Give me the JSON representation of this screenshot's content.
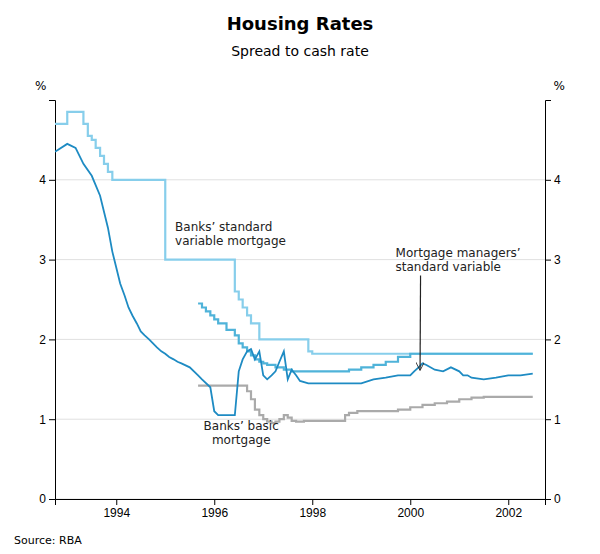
{
  "chart_data": {
    "type": "line",
    "title": "Housing Rates",
    "subtitle": "Spread to cash rate",
    "source": "Source: RBA",
    "ylabel": "%",
    "y2label": "%",
    "xlim": [
      1992.75,
      2002.75
    ],
    "xticks": [
      1994,
      1996,
      1998,
      2000,
      2002
    ],
    "ylim": [
      0,
      5
    ],
    "yticks": [
      0,
      1,
      2,
      3,
      4
    ],
    "y2lim": [
      0,
      5
    ],
    "y2ticks": [
      0,
      1,
      2,
      3,
      4
    ],
    "grid": "y",
    "annotations": [
      {
        "text": "Banks’ standard\nvariable mortgage"
      },
      {
        "text": "Banks’ basic\nmortgage"
      },
      {
        "text": "Mortgage managers’\nstandard variable",
        "x": 2000.2,
        "y": 1.62
      }
    ],
    "series": [
      {
        "color": "#87ceeb",
        "line_style": "steps",
        "x": [
          1992.75,
          1993.0,
          1993.25,
          1993.33,
          1993.42,
          1993.5,
          1993.58,
          1993.67,
          1993.75,
          1993.83,
          1993.92,
          1994.0,
          1994.5,
          1994.75,
          1994.92,
          1995.0,
          1995.5,
          1995.75,
          1995.92,
          1996.0,
          1996.33,
          1996.42,
          1996.5,
          1996.58,
          1996.67,
          1996.75,
          1996.92,
          1997.0,
          1997.25,
          1997.5,
          1997.75,
          1997.92,
          1998.0,
          1998.5,
          1999.0,
          1999.5,
          2000.0,
          2000.5,
          2001.0,
          2001.5,
          2002.0,
          2002.5
        ],
        "values": [
          4.7,
          4.85,
          4.85,
          4.7,
          4.55,
          4.5,
          4.4,
          4.3,
          4.2,
          4.1,
          4.0,
          4.0,
          4.0,
          4.0,
          4.0,
          3.0,
          3.0,
          3.0,
          3.0,
          3.0,
          3.0,
          2.6,
          2.5,
          2.4,
          2.3,
          2.2,
          2.0,
          2.0,
          2.0,
          2.0,
          2.0,
          1.85,
          1.82,
          1.82,
          1.82,
          1.82,
          1.82,
          1.82,
          1.82,
          1.82,
          1.82,
          1.82
        ]
      },
      {
        "color": "#4fb3d9",
        "line_style": "steps",
        "x": [
          1995.67,
          1995.75,
          1995.83,
          1995.92,
          1996.0,
          1996.08,
          1996.25,
          1996.42,
          1996.5,
          1996.58,
          1996.67,
          1996.75,
          1996.83,
          1996.92,
          1997.0,
          1997.08,
          1997.25,
          1997.42,
          1997.5,
          1997.58,
          1997.67,
          1997.75,
          1997.92,
          1998.0,
          1998.25,
          1998.5,
          1998.75,
          1999.0,
          1999.25,
          1999.5,
          1999.75,
          2000.0,
          2000.25,
          2000.5,
          2000.75,
          2001.0,
          2001.25,
          2001.5,
          2001.75,
          2002.0,
          2002.5
        ],
        "values": [
          2.45,
          2.4,
          2.35,
          2.3,
          2.25,
          2.2,
          2.12,
          2.05,
          1.95,
          1.9,
          1.85,
          1.8,
          1.75,
          1.72,
          1.7,
          1.68,
          1.65,
          1.62,
          1.62,
          1.6,
          1.6,
          1.6,
          1.6,
          1.6,
          1.6,
          1.6,
          1.62,
          1.65,
          1.68,
          1.72,
          1.78,
          1.82,
          1.82,
          1.82,
          1.82,
          1.82,
          1.82,
          1.82,
          1.82,
          1.82,
          1.82
        ]
      },
      {
        "color": "#aaaaaa",
        "line_style": "steps",
        "x": [
          1995.67,
          1995.75,
          1995.83,
          1995.92,
          1996.0,
          1996.08,
          1996.25,
          1996.42,
          1996.5,
          1996.58,
          1996.67,
          1996.75,
          1996.83,
          1996.92,
          1997.0,
          1997.08,
          1997.17,
          1997.25,
          1997.33,
          1997.42,
          1997.5,
          1997.58,
          1997.67,
          1997.75,
          1997.83,
          1997.92,
          1998.0,
          1998.08,
          1998.25,
          1998.5,
          1998.67,
          1998.75,
          1998.92,
          1999.0,
          1999.25,
          1999.5,
          1999.75,
          2000.0,
          2000.25,
          2000.5,
          2000.75,
          2001.0,
          2001.25,
          2001.5,
          2001.75,
          2002.0,
          2002.5
        ],
        "values": [
          1.42,
          1.42,
          1.42,
          1.42,
          1.42,
          1.42,
          1.42,
          1.42,
          1.42,
          1.42,
          1.35,
          1.25,
          1.12,
          1.05,
          1.0,
          0.97,
          0.95,
          0.97,
          1.0,
          1.05,
          1.02,
          0.98,
          0.97,
          0.97,
          0.98,
          0.98,
          0.98,
          0.98,
          0.98,
          0.98,
          1.05,
          1.08,
          1.1,
          1.1,
          1.1,
          1.1,
          1.12,
          1.15,
          1.18,
          1.2,
          1.22,
          1.25,
          1.27,
          1.28,
          1.28,
          1.28,
          1.28
        ]
      },
      {
        "color": "#1e8bc3",
        "line_style": "solid",
        "x": [
          1992.75,
          1993.0,
          1993.17,
          1993.25,
          1993.33,
          1993.5,
          1993.67,
          1993.83,
          1993.92,
          1994.0,
          1994.08,
          1994.17,
          1994.25,
          1994.33,
          1994.42,
          1994.5,
          1994.58,
          1994.67,
          1994.75,
          1994.83,
          1994.92,
          1995.0,
          1995.08,
          1995.17,
          1995.25,
          1995.33,
          1995.5,
          1995.67,
          1995.75,
          1995.92,
          1996.0,
          1996.08,
          1996.17,
          1996.25,
          1996.33,
          1996.42,
          1996.5,
          1996.58,
          1996.67,
          1996.75,
          1996.83,
          1996.92,
          1997.0,
          1997.08,
          1997.17,
          1997.25,
          1997.33,
          1997.42,
          1997.5,
          1997.58,
          1997.67,
          1997.75,
          1997.92,
          1998.0,
          1998.08,
          1998.25,
          1998.5,
          1998.75,
          1999.0,
          1999.25,
          1999.5,
          1999.75,
          2000.0,
          2000.08,
          2000.17,
          2000.25,
          2000.33,
          2000.5,
          2000.67,
          2000.83,
          2001.0,
          2001.08,
          2001.17,
          2001.25,
          2001.5,
          2001.75,
          2002.0,
          2002.25,
          2002.5
        ],
        "values": [
          4.35,
          4.45,
          4.4,
          4.3,
          4.2,
          4.05,
          3.8,
          3.4,
          3.1,
          2.9,
          2.7,
          2.55,
          2.4,
          2.3,
          2.2,
          2.1,
          2.05,
          2.0,
          1.95,
          1.9,
          1.85,
          1.82,
          1.78,
          1.75,
          1.72,
          1.7,
          1.65,
          1.55,
          1.5,
          1.4,
          1.1,
          1.05,
          1.05,
          1.05,
          1.05,
          1.05,
          1.6,
          1.75,
          1.85,
          1.88,
          1.75,
          1.85,
          1.55,
          1.5,
          1.55,
          1.6,
          1.72,
          1.85,
          1.5,
          1.62,
          1.55,
          1.48,
          1.45,
          1.45,
          1.45,
          1.45,
          1.45,
          1.45,
          1.45,
          1.5,
          1.52,
          1.55,
          1.55,
          1.6,
          1.65,
          1.7,
          1.68,
          1.62,
          1.6,
          1.65,
          1.6,
          1.55,
          1.55,
          1.52,
          1.5,
          1.52,
          1.55,
          1.55,
          1.57
        ]
      }
    ]
  }
}
